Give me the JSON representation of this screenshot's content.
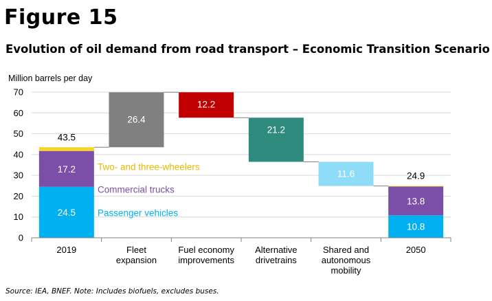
{
  "figure_label": "Figure 15",
  "title": "Evolution of oil demand from road transport – Economic Transition Scenario",
  "source": "Source: IEA, BNEF. Note: Includes biofuels, excludes buses.",
  "chart_data": {
    "type": "bar",
    "subtype": "waterfall",
    "ylabel": "Million barrels per day",
    "ylim": [
      0,
      70
    ],
    "yticks": [
      0,
      10,
      20,
      30,
      40,
      50,
      60,
      70
    ],
    "grid": true,
    "categories": [
      "2019",
      "Fleet expansion",
      "Fuel economy improvements",
      "Alternative drivetrains",
      "Shared and autonomous mobility",
      "2050"
    ],
    "category_labels": [
      [
        "2019"
      ],
      [
        "Fleet",
        "expansion"
      ],
      [
        "Fuel economy",
        "improvements"
      ],
      [
        "Alternative",
        "drivetrains"
      ],
      [
        "Shared and",
        "autonomous",
        "mobility"
      ],
      [
        "2050"
      ]
    ],
    "stacked_segments": [
      {
        "name": "Passenger vehicles",
        "color": "#00B0F0",
        "values": {
          "2019": 24.5,
          "2050": 10.8
        },
        "labels": {
          "2019": "24.5",
          "2050": "10.8"
        }
      },
      {
        "name": "Commercial trucks",
        "color": "#7B4FA8",
        "values": {
          "2019": 17.2,
          "2050": 13.8
        },
        "labels": {
          "2019": "17.2",
          "2050": "13.8"
        }
      },
      {
        "name": "Two- and three-wheelers",
        "color": "#F5D327",
        "values": {
          "2019": 1.8,
          "2050": 0.3
        }
      }
    ],
    "series_labels": [
      {
        "name": "Two- and three-wheelers",
        "color": "#E8B800"
      },
      {
        "name": "Commercial trucks",
        "color": "#7B4FA8"
      },
      {
        "name": "Passenger vehicles",
        "color": "#00B0F0"
      }
    ],
    "totals": {
      "2019": 43.5,
      "2050": 24.9
    },
    "total_labels": {
      "2019": "43.5",
      "2050": "24.9"
    },
    "changes": [
      {
        "category": "Fleet expansion",
        "value": 26.4,
        "label": "26.4",
        "color": "#808080"
      },
      {
        "category": "Fuel economy improvements",
        "value": -12.2,
        "label": "12.2",
        "color": "#C00000"
      },
      {
        "category": "Alternative drivetrains",
        "value": -21.2,
        "label": "21.2",
        "color": "#2E8B7D"
      },
      {
        "category": "Shared and autonomous mobility",
        "value": -11.6,
        "label": "11.6",
        "color": "#8EDCF8"
      }
    ]
  }
}
